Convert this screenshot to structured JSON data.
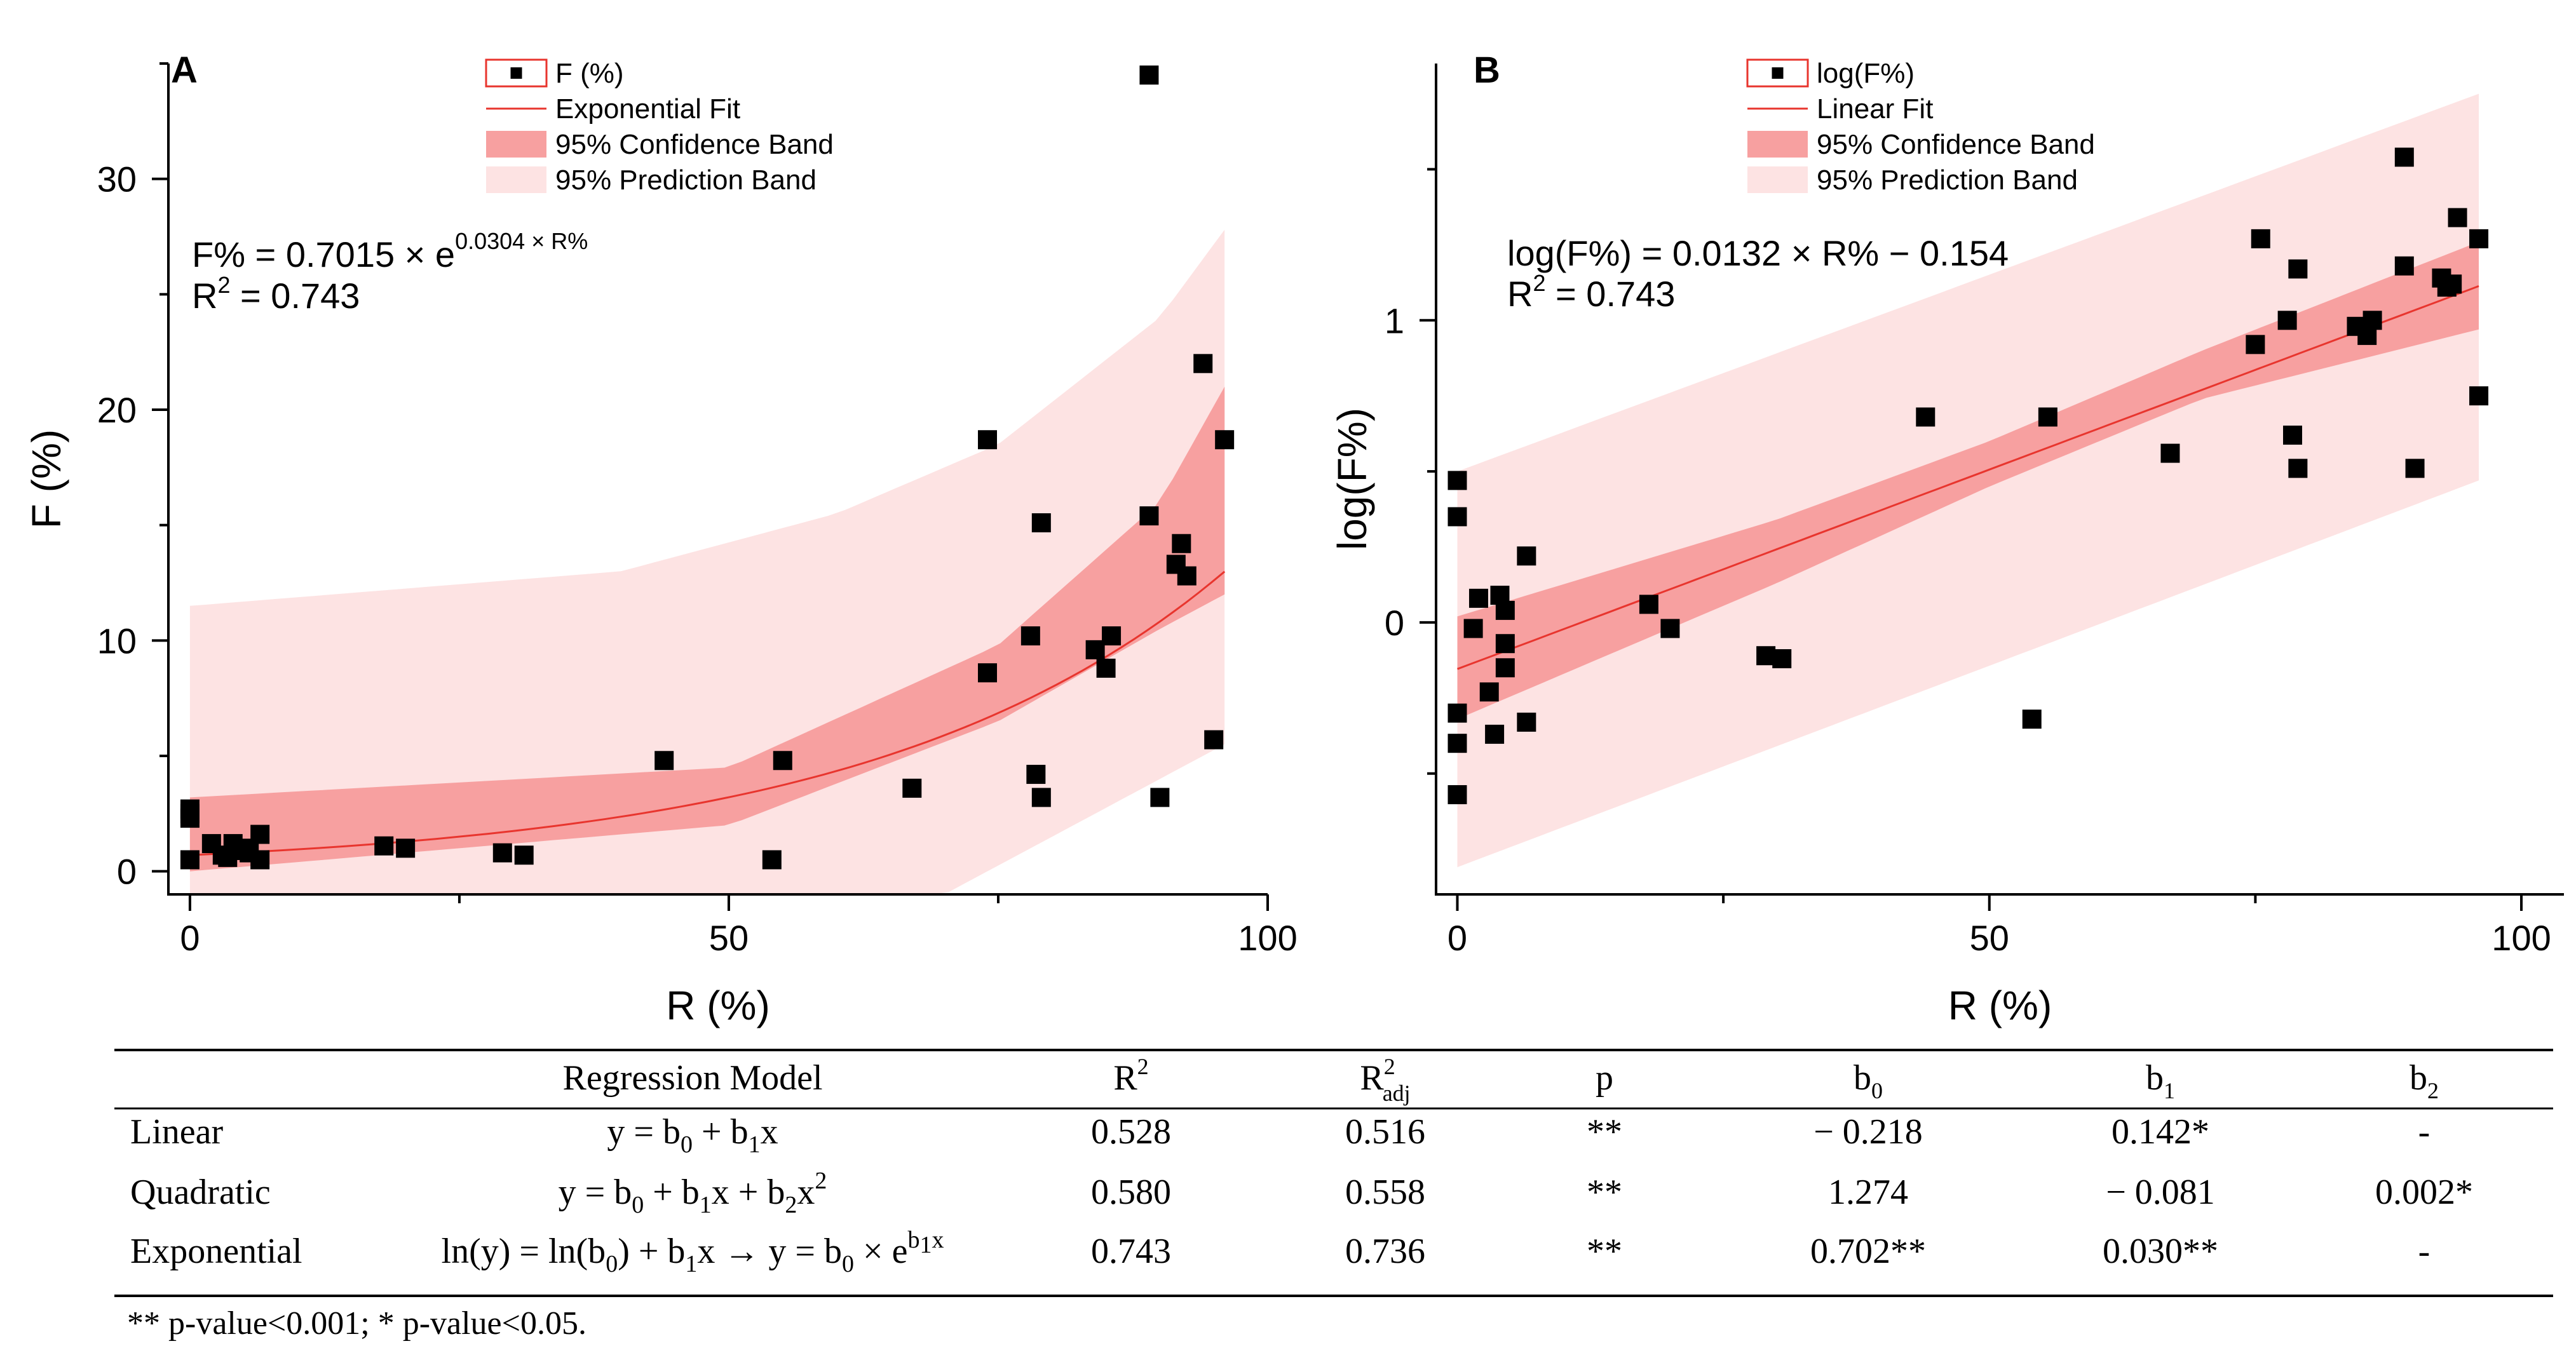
{
  "chart_data": [
    {
      "panel_label": "A",
      "type": "scatter",
      "xlabel": "R (%)",
      "ylabel": "F (%)",
      "xlim": [
        -2,
        100
      ],
      "ylim": [
        -1,
        35
      ],
      "xticks": [
        {
          "v": 0,
          "label": "0"
        },
        {
          "v": 50,
          "label": "50"
        },
        {
          "v": 100,
          "label": "100"
        }
      ],
      "yticks": [
        {
          "v": 0,
          "label": "0"
        },
        {
          "v": 10,
          "label": "10"
        },
        {
          "v": 20,
          "label": "20"
        },
        {
          "v": 30,
          "label": "30"
        }
      ],
      "fit": {
        "kind": "exponential",
        "b0": 0.7015,
        "b1": 0.0304,
        "x_range": [
          0,
          96
        ]
      },
      "conf_band": {
        "lower": [
          [
            0,
            0.0
          ],
          [
            50,
            2.0
          ],
          [
            75,
            6.5
          ],
          [
            90,
            10.5
          ],
          [
            96,
            12.0
          ]
        ],
        "upper": [
          [
            0,
            3.2
          ],
          [
            50,
            4.5
          ],
          [
            75,
            9.8
          ],
          [
            90,
            16.0
          ],
          [
            96,
            21.0
          ]
        ]
      },
      "pred_band": {
        "lower": [
          [
            0,
            -1
          ],
          [
            70,
            -1
          ],
          [
            96,
            5.5
          ]
        ],
        "upper": [
          [
            0,
            11.5
          ],
          [
            40,
            13.0
          ],
          [
            60,
            15.5
          ],
          [
            75,
            18.5
          ],
          [
            90,
            24.0
          ],
          [
            96,
            27.8
          ]
        ]
      },
      "points": [
        [
          0,
          0.5
        ],
        [
          0,
          2.3
        ],
        [
          0,
          2.5
        ],
        [
          0,
          2.7
        ],
        [
          2,
          1.2
        ],
        [
          3,
          0.7
        ],
        [
          3.5,
          0.6
        ],
        [
          4,
          1.2
        ],
        [
          4.5,
          0.9
        ],
        [
          5,
          1.0
        ],
        [
          5.5,
          0.8
        ],
        [
          6.5,
          0.5
        ],
        [
          6.5,
          1.6
        ],
        [
          18,
          1.1
        ],
        [
          20,
          1.0
        ],
        [
          29,
          0.8
        ],
        [
          31,
          0.7
        ],
        [
          44,
          4.8
        ],
        [
          55,
          4.8
        ],
        [
          54,
          0.5
        ],
        [
          67,
          3.6
        ],
        [
          74,
          8.6
        ],
        [
          74,
          18.7
        ],
        [
          78,
          10.2
        ],
        [
          78.5,
          4.2
        ],
        [
          79,
          15.1
        ],
        [
          79,
          3.2
        ],
        [
          84,
          9.6
        ],
        [
          85,
          8.8
        ],
        [
          85.5,
          10.2
        ],
        [
          89,
          34.5
        ],
        [
          89,
          15.4
        ],
        [
          90,
          3.2
        ],
        [
          91.5,
          13.3
        ],
        [
          92,
          14.2
        ],
        [
          92.5,
          12.8
        ],
        [
          94,
          22.0
        ],
        [
          95,
          5.7
        ],
        [
          96,
          18.7
        ]
      ],
      "legend": [
        "F (%)",
        "Exponential Fit",
        "95% Confidence Band",
        "95% Prediction Band"
      ],
      "eq_main": "F% = 0.7015 × e",
      "eq_exp": "0.0304 × R%",
      "r2_label": "R",
      "r2_sup": "2",
      "r2_value": " = 0.743"
    },
    {
      "panel_label": "B",
      "type": "scatter",
      "xlabel": "R (%)",
      "ylabel": "log(F%)",
      "xlim": [
        -2,
        104
      ],
      "ylim": [
        -0.9,
        1.85
      ],
      "xticks": [
        {
          "v": 0,
          "label": "0"
        },
        {
          "v": 50,
          "label": "50"
        },
        {
          "v": 100,
          "label": "100"
        }
      ],
      "yticks": [
        {
          "v": 0,
          "label": "0"
        },
        {
          "v": 1,
          "label": "1"
        }
      ],
      "minor_yticks": [
        -0.5,
        0.5,
        1.5
      ],
      "fit": {
        "kind": "linear",
        "b0": -0.154,
        "b1": 0.0132,
        "x_range": [
          0,
          96
        ]
      },
      "conf_band": {
        "lower": [
          [
            0,
            -0.32
          ],
          [
            30,
            0.13
          ],
          [
            50,
            0.45
          ],
          [
            70,
            0.74
          ],
          [
            96,
            0.97
          ]
        ],
        "upper": [
          [
            0,
            0.02
          ],
          [
            30,
            0.34
          ],
          [
            50,
            0.6
          ],
          [
            70,
            0.9
          ],
          [
            96,
            1.26
          ]
        ]
      },
      "pred_band": {
        "lower": [
          [
            0,
            -0.81
          ],
          [
            96,
            0.47
          ]
        ],
        "upper": [
          [
            0,
            0.5
          ],
          [
            96,
            1.75
          ]
        ]
      },
      "points": [
        [
          0,
          0.47
        ],
        [
          0,
          0.35
        ],
        [
          0,
          -0.3
        ],
        [
          0,
          -0.4
        ],
        [
          0,
          -0.57
        ],
        [
          1.5,
          -0.02
        ],
        [
          2,
          0.08
        ],
        [
          3,
          -0.23
        ],
        [
          3.5,
          -0.37
        ],
        [
          4,
          0.09
        ],
        [
          4.5,
          0.04
        ],
        [
          4.5,
          -0.07
        ],
        [
          4.5,
          -0.15
        ],
        [
          6.5,
          0.22
        ],
        [
          6.5,
          -0.33
        ],
        [
          18,
          0.06
        ],
        [
          20,
          -0.02
        ],
        [
          29,
          -0.11
        ],
        [
          30.5,
          -0.12
        ],
        [
          44,
          0.68
        ],
        [
          54,
          -0.32
        ],
        [
          55.5,
          0.68
        ],
        [
          67,
          0.56
        ],
        [
          75,
          0.92
        ],
        [
          75.5,
          1.27
        ],
        [
          78,
          1.0
        ],
        [
          78.5,
          0.62
        ],
        [
          79,
          1.17
        ],
        [
          79,
          0.51
        ],
        [
          84.5,
          0.98
        ],
        [
          85.5,
          0.95
        ],
        [
          86,
          1.0
        ],
        [
          89,
          1.54
        ],
        [
          89,
          1.18
        ],
        [
          90,
          0.51
        ],
        [
          92.5,
          1.14
        ],
        [
          93,
          1.11
        ],
        [
          93.5,
          1.12
        ],
        [
          94,
          1.34
        ],
        [
          96,
          1.27
        ],
        [
          96,
          0.75
        ]
      ],
      "legend": [
        "log(F%)",
        "Linear Fit",
        "95% Confidence Band",
        "95% Prediction Band"
      ],
      "eq_main": "log(F%) = 0.0132 × R% − 0.154",
      "eq_exp": "",
      "r2_label": "R",
      "r2_sup": "2",
      "r2_value": " = 0.743"
    }
  ],
  "table": {
    "header": [
      {
        "main": "",
        "sup": "",
        "sub": ""
      },
      {
        "main": "Regression Model",
        "sup": "",
        "sub": ""
      },
      {
        "main": "R",
        "sup": "2",
        "sub": ""
      },
      {
        "main": "R",
        "sup": "2",
        "sub": "adj"
      },
      {
        "main": "p",
        "sup": "",
        "sub": ""
      },
      {
        "main": "b",
        "sup": "",
        "sub": "0"
      },
      {
        "main": "b",
        "sup": "",
        "sub": "1"
      },
      {
        "main": "b",
        "sup": "",
        "sub": "2"
      }
    ],
    "rows": [
      {
        "name": "Linear",
        "formula": "y = b₀ + b₁x",
        "cells": [
          "0.528",
          "0.516",
          "**",
          "− 0.218",
          "0.142*",
          "-"
        ]
      },
      {
        "name": "Quadratic",
        "formula": "y = b₀ + b₁x + b₂x²",
        "cells": [
          "0.580",
          "0.558",
          "**",
          "1.274",
          "− 0.081",
          "0.002*"
        ]
      },
      {
        "name": "Exponential",
        "formula": "ln(y) = ln(b₀) + b₁x → y = b₀ × e^(b₁x)",
        "cells": [
          "0.743",
          "0.736",
          "**",
          "0.702**",
          "0.030**",
          "-"
        ]
      }
    ],
    "footnote": "** p-value<0.001; * p-value<0.05."
  },
  "colors": {
    "point": "#000000",
    "fit_line": "#e8352e",
    "conf_band": "#f7a0a0",
    "pred_band": "#fde3e3",
    "axis": "#000000"
  }
}
